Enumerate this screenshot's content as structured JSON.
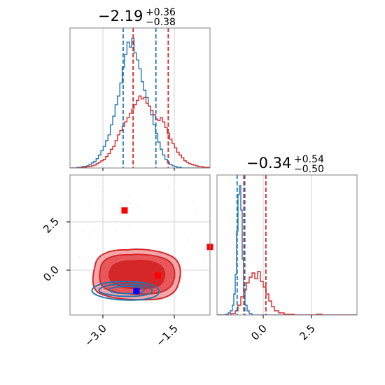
{
  "chart_data": [
    {
      "id": "hist-param1",
      "type": "histogram",
      "title": {
        "median": "−2.19",
        "plus": "+0.36",
        "minus": "−0.38"
      },
      "xlim": [
        -3.9,
        -0.95
      ],
      "bin_edges": [
        -3.9,
        -3.85,
        -3.8,
        -3.75,
        -3.7,
        -3.65,
        -3.6,
        -3.55,
        -3.5,
        -3.45,
        -3.4,
        -3.35,
        -3.3,
        -3.25,
        -3.2,
        -3.15,
        -3.1,
        -3.05,
        -3.0,
        -2.95,
        -2.9,
        -2.85,
        -2.8,
        -2.75,
        -2.7,
        -2.65,
        -2.6,
        -2.55,
        -2.5,
        -2.45,
        -2.4,
        -2.35,
        -2.3,
        -2.25,
        -2.2,
        -2.15,
        -2.1,
        -2.05,
        -2.0,
        -1.95,
        -1.9,
        -1.85,
        -1.8,
        -1.75,
        -1.7,
        -1.65,
        -1.6,
        -1.55,
        -1.5,
        -1.45,
        -1.4,
        -1.35,
        -1.3,
        -1.25,
        -1.2,
        -1.15,
        -1.1,
        -1.05,
        -1.0,
        -0.95
      ],
      "series": [
        {
          "color": "#1f77b4",
          "values": [
            0,
            0,
            0,
            1,
            1,
            2,
            2,
            3,
            5,
            7,
            9,
            13,
            18,
            24,
            30,
            38,
            46,
            60,
            72,
            88,
            100,
            118,
            140,
            158,
            175,
            168,
            180,
            160,
            150,
            138,
            120,
            108,
            98,
            86,
            74,
            60,
            48,
            36,
            26,
            18,
            12,
            8,
            5,
            3,
            2,
            1,
            1,
            0,
            0,
            0,
            0,
            0,
            0,
            0,
            0,
            0,
            0,
            0,
            0
          ]
        },
        {
          "color": "#d62728",
          "values": [
            0,
            0,
            0,
            0,
            0,
            1,
            1,
            2,
            2,
            3,
            4,
            6,
            8,
            10,
            12,
            16,
            20,
            26,
            30,
            38,
            46,
            52,
            58,
            64,
            70,
            76,
            82,
            88,
            94,
            100,
            96,
            98,
            90,
            86,
            80,
            74,
            68,
            66,
            70,
            64,
            56,
            48,
            40,
            34,
            28,
            22,
            18,
            14,
            10,
            8,
            6,
            5,
            4,
            3,
            2,
            2,
            1,
            1,
            1
          ]
        }
      ],
      "quantile_lines": [
        {
          "color": "#1f77b4",
          "x": [
            -2.78,
            -2.09
          ]
        },
        {
          "color": "#d62728",
          "x": [
            -2.57,
            -1.83
          ]
        }
      ]
    },
    {
      "id": "scatter-2d",
      "type": "scatter",
      "xlim": [
        -3.9,
        -0.95
      ],
      "ylim": [
        -2.4,
        4.9
      ],
      "xticks": [
        {
          "value": -3.0,
          "label": "−3.0"
        },
        {
          "value": -1.5,
          "label": "−1.5"
        }
      ],
      "yticks": [
        {
          "value": 0.0,
          "label": "0.0"
        },
        {
          "value": 2.5,
          "label": "2.5"
        }
      ],
      "markers": [
        {
          "color": "#ff0000",
          "x": -2.75,
          "y": 3.05
        },
        {
          "color": "#ff0000",
          "x": -2.05,
          "y": -0.35
        },
        {
          "color": "#ff0000",
          "x": -0.95,
          "y": 1.15
        },
        {
          "color": "#0000ff",
          "x": -2.5,
          "y": -1.15
        }
      ]
    },
    {
      "id": "hist-param2",
      "type": "histogram",
      "title": {
        "median": "−0.34",
        "plus": "+0.54",
        "minus": "−0.50"
      },
      "xlim": [
        -2.4,
        4.9
      ],
      "xticks": [
        {
          "value": 0.0,
          "label": "0.0"
        },
        {
          "value": 2.5,
          "label": "2.5"
        }
      ],
      "quantile_lines": [
        {
          "color": "#1f77b4",
          "x": [
            -1.35,
            -0.95
          ]
        },
        {
          "color": "#d62728",
          "x": [
            -1.0,
            0.15
          ]
        }
      ]
    }
  ]
}
